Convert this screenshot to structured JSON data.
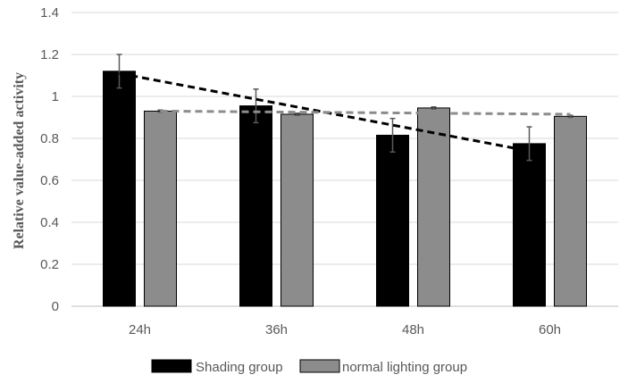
{
  "chart_data": {
    "type": "bar",
    "title": "",
    "xlabel": "",
    "ylabel": "Relative value-added activity",
    "categories": [
      "24h",
      "36h",
      "48h",
      "60h"
    ],
    "ylim": [
      0,
      1.4
    ],
    "yticks": [
      0,
      0.2,
      0.4,
      0.6,
      0.8,
      1,
      1.2,
      1.4
    ],
    "ytick_labels": [
      "0",
      "0.2",
      "0.4",
      "0.6",
      "0.8",
      "1",
      "1.2",
      "1.4"
    ],
    "grid": true,
    "legend_position": "bottom",
    "series": [
      {
        "name": "Shading group",
        "values": [
          1.12,
          0.955,
          0.815,
          0.775
        ],
        "errors": [
          0.08,
          0.08,
          0.08,
          0.08
        ],
        "color": "#000000",
        "trendline": {
          "start": 1.11,
          "end": 0.74,
          "color": "#000000",
          "style": "dashed"
        }
      },
      {
        "name": "normal lighting group",
        "values": [
          0.93,
          0.915,
          0.945,
          0.905
        ],
        "errors": [
          0.005,
          0.005,
          0.005,
          0.005
        ],
        "color": "#8c8c8c",
        "trendline": {
          "start": 0.93,
          "end": 0.915,
          "color": "#8c8c8c",
          "style": "dashed"
        }
      }
    ]
  }
}
